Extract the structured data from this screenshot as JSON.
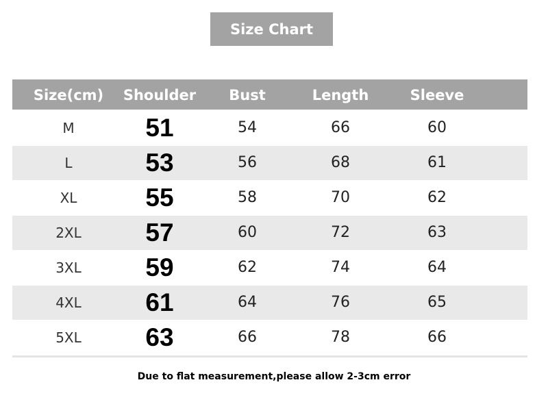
{
  "title": "Size Chart",
  "colors": {
    "header_bg": "#a3a3a3",
    "alt_row_bg": "#e9e9e9"
  },
  "headers": [
    "Size(cm)",
    "Shoulder",
    "Bust",
    "Length",
    "Sleeve"
  ],
  "rows": [
    [
      "M",
      "51",
      "54",
      "66",
      "60"
    ],
    [
      "L",
      "53",
      "56",
      "68",
      "61"
    ],
    [
      "XL",
      "55",
      "58",
      "70",
      "62"
    ],
    [
      "2XL",
      "57",
      "60",
      "72",
      "63"
    ],
    [
      "3XL",
      "59",
      "62",
      "74",
      "64"
    ],
    [
      "4XL",
      "61",
      "64",
      "76",
      "65"
    ],
    [
      "5XL",
      "63",
      "66",
      "78",
      "66"
    ]
  ],
  "note": "Due to flat measurement,please allow 2-3cm error"
}
